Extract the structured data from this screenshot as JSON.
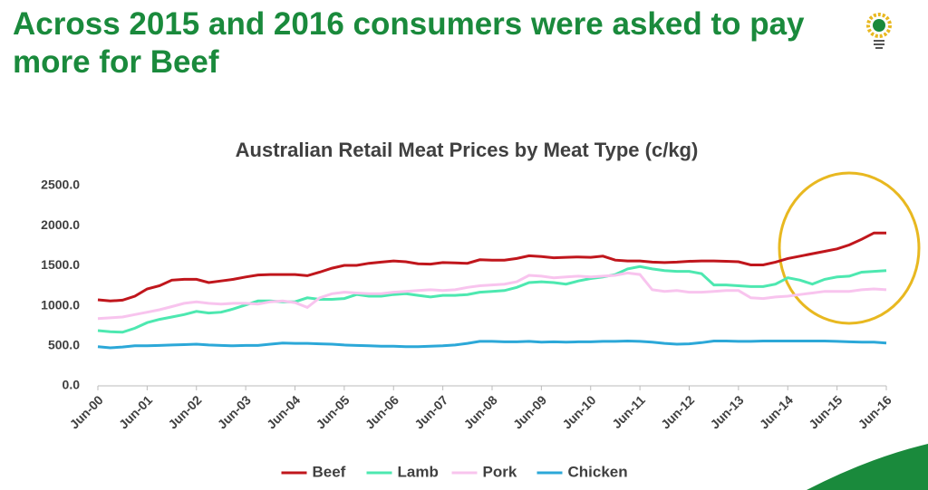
{
  "slide_title": "Across 2015 and 2016 consumers were asked to pay more for Beef",
  "chart_data": {
    "type": "line",
    "title": "Australian Retail Meat Prices by Meat Type (c/kg)",
    "categories": [
      "Jun-00",
      null,
      null,
      null,
      "Jun-01",
      null,
      null,
      null,
      "Jun-02",
      null,
      null,
      null,
      "Jun-03",
      null,
      null,
      null,
      "Jun-04",
      null,
      null,
      null,
      "Jun-05",
      null,
      null,
      null,
      "Jun-06",
      null,
      null,
      null,
      "Jun-07",
      null,
      null,
      null,
      "Jun-08",
      null,
      null,
      null,
      "Jun-09",
      null,
      null,
      null,
      "Jun-10",
      null,
      null,
      null,
      "Jun-11",
      null,
      null,
      null,
      "Jun-12",
      null,
      null,
      null,
      "Jun-13",
      null,
      null,
      null,
      "Jun-14",
      null,
      null,
      null,
      "Jun-15",
      null,
      null,
      null,
      "Jun-16"
    ],
    "series": [
      {
        "name": "Beef",
        "color": "#c0161c",
        "values": [
          1075,
          1060,
          1070,
          1120,
          1210,
          1250,
          1320,
          1330,
          1330,
          1290,
          1310,
          1330,
          1360,
          1385,
          1390,
          1390,
          1390,
          1375,
          1420,
          1470,
          1505,
          1505,
          1530,
          1545,
          1560,
          1550,
          1525,
          1520,
          1540,
          1535,
          1530,
          1575,
          1570,
          1570,
          1590,
          1625,
          1615,
          1600,
          1605,
          1610,
          1605,
          1620,
          1570,
          1560,
          1560,
          1545,
          1540,
          1545,
          1555,
          1560,
          1560,
          1555,
          1550,
          1510,
          1510,
          1545,
          1590,
          1620,
          1650,
          1680,
          1710,
          1760,
          1830,
          1910,
          1910
        ]
      },
      {
        "name": "Lamb",
        "color": "#4de8b0",
        "values": [
          690,
          675,
          670,
          720,
          790,
          830,
          860,
          890,
          930,
          910,
          920,
          960,
          1010,
          1060,
          1060,
          1050,
          1050,
          1100,
          1080,
          1080,
          1090,
          1140,
          1120,
          1120,
          1140,
          1150,
          1130,
          1110,
          1130,
          1130,
          1140,
          1170,
          1180,
          1190,
          1230,
          1290,
          1300,
          1290,
          1270,
          1310,
          1340,
          1360,
          1390,
          1460,
          1490,
          1460,
          1440,
          1430,
          1430,
          1400,
          1260,
          1260,
          1250,
          1240,
          1240,
          1270,
          1350,
          1320,
          1270,
          1330,
          1360,
          1370,
          1420,
          1430,
          1440
        ]
      },
      {
        "name": "Pork",
        "color": "#f8c4ee",
        "values": [
          840,
          850,
          860,
          890,
          920,
          950,
          990,
          1030,
          1050,
          1030,
          1020,
          1030,
          1030,
          1020,
          1050,
          1060,
          1040,
          980,
          1100,
          1150,
          1170,
          1160,
          1150,
          1150,
          1170,
          1180,
          1190,
          1200,
          1190,
          1200,
          1230,
          1250,
          1260,
          1270,
          1300,
          1380,
          1370,
          1350,
          1360,
          1370,
          1360,
          1370,
          1380,
          1410,
          1390,
          1200,
          1180,
          1190,
          1170,
          1170,
          1180,
          1190,
          1190,
          1100,
          1090,
          1110,
          1120,
          1140,
          1160,
          1180,
          1180,
          1180,
          1200,
          1210,
          1200
        ]
      },
      {
        "name": "Chicken",
        "color": "#2ca8d8",
        "values": [
          490,
          475,
          485,
          500,
          500,
          505,
          510,
          515,
          520,
          510,
          505,
          500,
          505,
          505,
          520,
          535,
          530,
          530,
          525,
          520,
          510,
          505,
          500,
          495,
          495,
          490,
          490,
          495,
          500,
          510,
          530,
          555,
          555,
          550,
          550,
          555,
          545,
          550,
          545,
          550,
          550,
          555,
          555,
          560,
          555,
          545,
          530,
          520,
          525,
          540,
          560,
          560,
          555,
          555,
          560,
          560,
          560,
          560,
          560,
          560,
          555,
          550,
          545,
          545,
          535
        ]
      }
    ],
    "ylim": [
      0,
      2500
    ],
    "yticks": [
      {
        "value": 0,
        "label": "0.0"
      },
      {
        "value": 500,
        "label": "500.0"
      },
      {
        "value": 1000,
        "label": "1000.0"
      },
      {
        "value": 1500,
        "label": "1500.0"
      },
      {
        "value": 2000,
        "label": "2000.0"
      },
      {
        "value": 2500,
        "label": "2500.0"
      }
    ],
    "legend": "bottom"
  }
}
